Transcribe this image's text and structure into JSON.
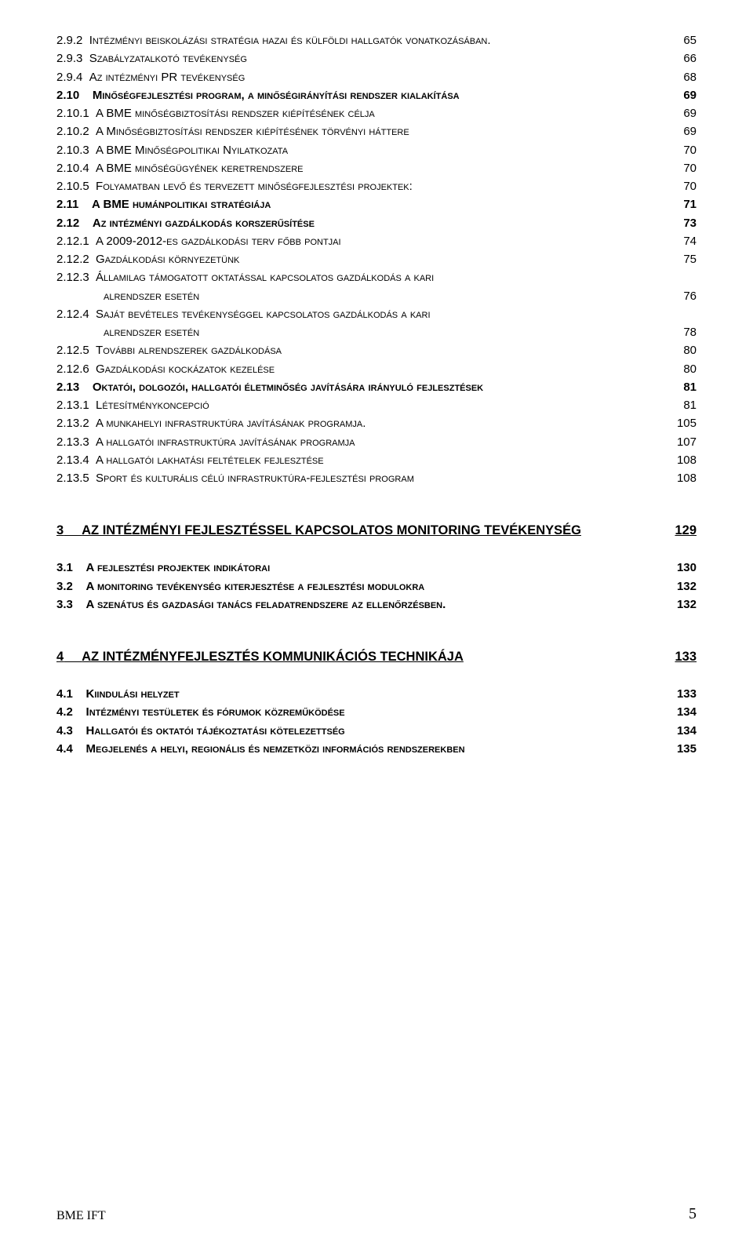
{
  "toc": {
    "group1": [
      {
        "num": "2.9.2",
        "title": "Intézményi beiskolázási stratégia hazai és külföldi hallgatók vonatkozásában.",
        "page": "65",
        "caps": true
      },
      {
        "num": "2.9.3",
        "title": "Szabályzatalkotó tevékenység",
        "page": "66",
        "caps": true
      },
      {
        "num": "2.9.4",
        "title": "Az intézményi PR tevékenység",
        "page": "68",
        "caps": true
      },
      {
        "num": "2.10",
        "title": "Minőségfejlesztési program, a minőségirányítási rendszer kialakítása",
        "page": "69",
        "bold": true,
        "caps": true
      },
      {
        "num": "2.10.1",
        "title": "A BME minőségbiztosítási rendszer kiépítésének célja",
        "page": "69",
        "caps": true
      },
      {
        "num": "2.10.2",
        "title": "A Minőségbiztosítási rendszer kiépítésének törvényi háttere",
        "page": "69",
        "caps": true
      },
      {
        "num": "2.10.3",
        "title": "A BME Minőségpolitikai Nyilatkozata",
        "page": "70",
        "caps": true
      },
      {
        "num": "2.10.4",
        "title": "A BME minőségügyének keretrendszere",
        "page": "70",
        "caps": true
      },
      {
        "num": "2.10.5",
        "title": "Folyamatban levő és tervezett minőségfejlesztési projektek:",
        "page": "70",
        "caps": true
      },
      {
        "num": "2.11",
        "title": "A BME humánpolitikai stratégiája",
        "page": "71",
        "bold": true,
        "caps": true
      },
      {
        "num": "2.12",
        "title": "Az intézményi gazdálkodás korszerűsítése",
        "page": "73",
        "bold": true,
        "caps": true
      },
      {
        "num": "2.12.1",
        "title": "A 2009-2012-es gazdálkodási terv főbb pontjai",
        "page": "74",
        "caps": true
      },
      {
        "num": "2.12.2",
        "title": "Gazdálkodási környezetünk",
        "page": "75",
        "caps": true
      },
      {
        "num": "2.12.3",
        "title": "Államilag támogatott oktatással kapcsolatos gazdálkodás a kari",
        "page": "",
        "caps": true
      },
      {
        "num": "",
        "title": "alrendszer esetén",
        "page": "76",
        "caps": true,
        "indent": true
      },
      {
        "num": "2.12.4",
        "title": "Saját bevételes tevékenységgel kapcsolatos gazdálkodás a kari",
        "page": "",
        "caps": true
      },
      {
        "num": "",
        "title": "alrendszer esetén",
        "page": "78",
        "caps": true,
        "indent": true
      },
      {
        "num": "2.12.5",
        "title": "További alrendszerek gazdálkodása",
        "page": "80",
        "caps": true
      },
      {
        "num": "2.12.6",
        "title": "Gazdálkodási kockázatok kezelése",
        "page": "80",
        "caps": true
      },
      {
        "num": "2.13",
        "title": "Oktatói, dolgozói, hallgatói életminőség javítására irányuló fejlesztések",
        "page": "81",
        "bold": true,
        "caps": true
      },
      {
        "num": "2.13.1",
        "title": "Létesítménykoncepció",
        "page": "81",
        "caps": true
      },
      {
        "num": "2.13.2",
        "title": "A munkahelyi infrastruktúra javításának programja.",
        "page": "105",
        "caps": true
      },
      {
        "num": "2.13.3",
        "title": "A hallgatói infrastruktúra javításának programja",
        "page": "107",
        "caps": true
      },
      {
        "num": "2.13.4",
        "title": "A hallgatói lakhatási feltételek fejlesztése",
        "page": "108",
        "caps": true
      },
      {
        "num": "2.13.5",
        "title": "Sport és kulturális célú infrastruktúra-fejlesztési program",
        "page": "108",
        "caps": true
      }
    ],
    "section3": {
      "num": "3",
      "title": "AZ INTÉZMÉNYI FEJLESZTÉSSEL KAPCSOLATOS MONITORING TEVÉKENYSÉG",
      "page": "129"
    },
    "group3": [
      {
        "num": "3.1",
        "title": "A fejlesztési projektek indikátorai",
        "page": "130",
        "bold": true,
        "caps": true
      },
      {
        "num": "3.2",
        "title": "A monitoring tevékenység kiterjesztése a fejlesztési modulokra",
        "page": "132",
        "bold": true,
        "caps": true
      },
      {
        "num": "3.3",
        "title": "A szenátus és gazdasági tanács feladatrendszere az ellenőrzésben.",
        "page": "132",
        "bold": true,
        "caps": true
      }
    ],
    "section4": {
      "num": "4",
      "title": "AZ INTÉZMÉNYFEJLESZTÉS KOMMUNIKÁCIÓS TECHNIKÁJA",
      "page": "133"
    },
    "group4": [
      {
        "num": "4.1",
        "title": "Kiindulási helyzet",
        "page": "133",
        "bold": true,
        "caps": true
      },
      {
        "num": "4.2",
        "title": "Intézményi testületek és fórumok közreműködése",
        "page": "134",
        "bold": true,
        "caps": true
      },
      {
        "num": "4.3",
        "title": "Hallgatói és oktatói tájékoztatási kötelezettség",
        "page": "134",
        "bold": true,
        "caps": true
      },
      {
        "num": "4.4",
        "title": "Megjelenés a helyi, regionális és nemzetközi információs rendszerekben",
        "page": "135",
        "bold": true,
        "caps": true
      }
    ]
  },
  "footer": {
    "left": "BME IFT",
    "pagenum": "5"
  }
}
